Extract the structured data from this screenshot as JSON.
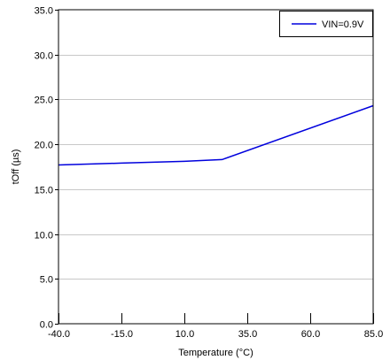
{
  "chart_data": {
    "type": "line",
    "xlabel": "Temperature (°C)",
    "ylabel": "tOff (µs)",
    "xlim": [
      -40,
      85
    ],
    "ylim": [
      0,
      35
    ],
    "xticks": [
      -40,
      -15,
      10,
      35,
      60,
      85
    ],
    "xtick_labels": [
      "-40.0",
      "-15.0",
      "10.0",
      "35.0",
      "60.0",
      "85.0"
    ],
    "yticks": [
      0,
      5,
      10,
      15,
      20,
      25,
      30,
      35
    ],
    "ytick_labels": [
      "0.0",
      "5.0",
      "10.0",
      "15.0",
      "20.0",
      "25.0",
      "30.0",
      "35.0"
    ],
    "grid": "horizontal",
    "legend_position": "top-right",
    "series": [
      {
        "name": "VIN=0.9V",
        "color": "#0000dd",
        "x": [
          -40,
          -15,
          10,
          25,
          85
        ],
        "y": [
          17.7,
          17.9,
          18.1,
          18.3,
          24.3
        ]
      }
    ]
  }
}
